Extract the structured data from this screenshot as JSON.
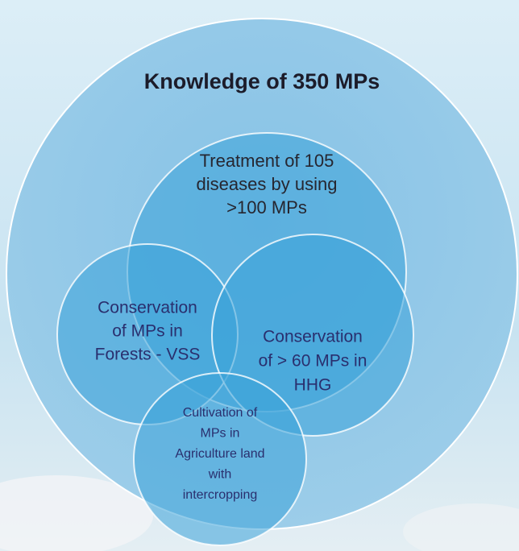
{
  "title": "Knowledge of 350 MPs",
  "circles": [
    {
      "lines": [
        "Treatment of 105",
        "diseases by using",
        ">100 MPs"
      ]
    },
    {
      "lines": [
        "Conservation",
        "of MPs in",
        "Forests - VSS"
      ]
    },
    {
      "lines": [
        "Conservation",
        "of > 60 MPs in",
        "HHG"
      ]
    },
    {
      "lines": [
        "Cultivation of",
        "MPs in",
        "Agriculture land",
        "with",
        "intercropping"
      ]
    }
  ]
}
